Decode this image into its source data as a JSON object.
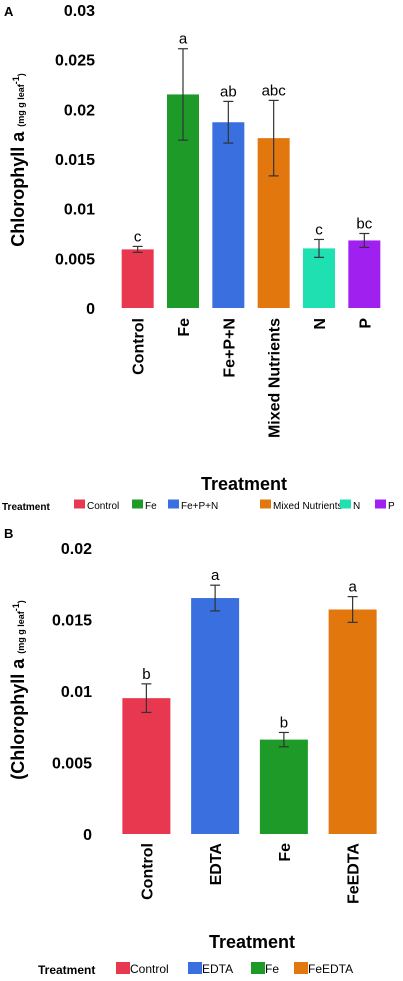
{
  "chart_data": [
    {
      "type": "bar",
      "panel_label": "A",
      "ylabel_main": "Chlorophyll a",
      "ylabel_units": "(mg g leaf",
      "ylabel_units_sup": "-1",
      "ylabel_units_close": ")",
      "xlabel": "Treatment",
      "ylim": [
        0,
        0.03
      ],
      "yticks": [
        "0",
        "0.005",
        "0.01",
        "0.015",
        "0.02",
        "0.025",
        "0.03"
      ],
      "ytick_values": [
        0,
        0.005,
        0.01,
        0.015,
        0.02,
        0.025,
        0.03
      ],
      "categories": [
        "Control",
        "Fe",
        "Fe+P+N",
        "Mixed Nutrients",
        "N",
        "P"
      ],
      "values": [
        0.0059,
        0.0215,
        0.0187,
        0.0171,
        0.006,
        0.0068
      ],
      "errors": [
        0.0003,
        0.0046,
        0.0021,
        0.0038,
        0.0009,
        0.0007
      ],
      "letters": [
        "c",
        "a",
        "ab",
        "abc",
        "c",
        "bc"
      ],
      "colors": [
        "#e8384f",
        "#1d9a28",
        "#3a6fe0",
        "#e2770d",
        "#1ee0b0",
        "#a020f0"
      ],
      "legend": {
        "title": "Treatment",
        "items": [
          "Control",
          "Fe",
          "Fe+P+N",
          "Mixed Nutrients",
          "N",
          "P"
        ]
      }
    },
    {
      "type": "bar",
      "panel_label": "B",
      "ylabel_main": "(Chlorophyll a",
      "ylabel_units": "(mg g leaf",
      "ylabel_units_sup": "-1",
      "ylabel_units_close": ")",
      "xlabel": "Treatment",
      "ylim": [
        0,
        0.02
      ],
      "yticks": [
        "0",
        "0.005",
        "0.01",
        "0.015",
        "0.02"
      ],
      "ytick_values": [
        0,
        0.005,
        0.01,
        0.015,
        0.02
      ],
      "categories": [
        "Control",
        "EDTA",
        "Fe",
        "FeEDTA"
      ],
      "values": [
        0.0095,
        0.0165,
        0.0066,
        0.0157
      ],
      "errors": [
        0.001,
        0.0009,
        0.0005,
        0.0009
      ],
      "letters": [
        "b",
        "a",
        "b",
        "a"
      ],
      "colors": [
        "#e8384f",
        "#3a6fe0",
        "#1d9a28",
        "#e2770d"
      ],
      "legend": {
        "title": "Treatment",
        "items": [
          "Control",
          "EDTA",
          "Fe",
          "FeEDTA"
        ]
      }
    }
  ]
}
